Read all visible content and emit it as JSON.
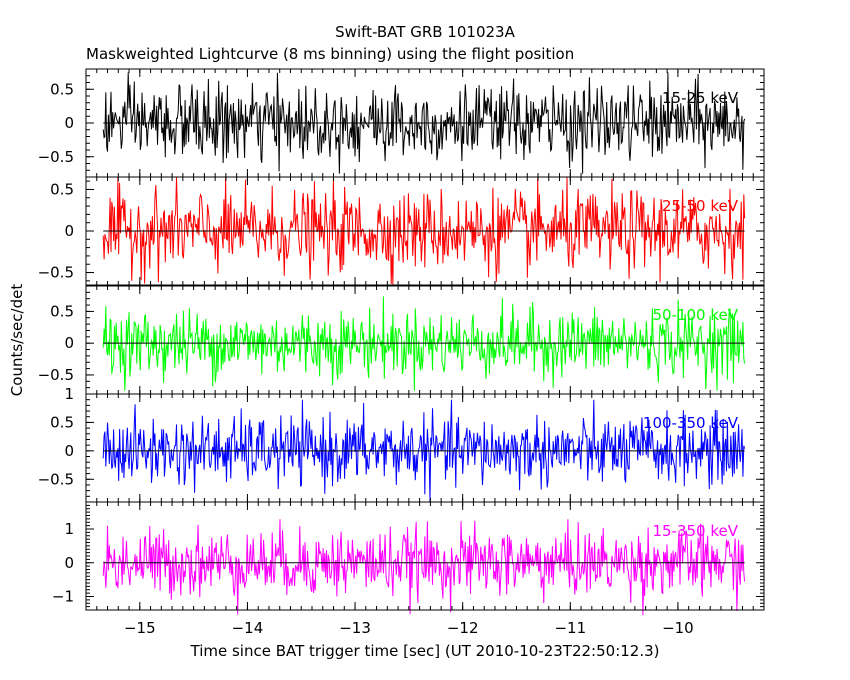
{
  "title": "Swift-BAT GRB 101023A",
  "subtitle": "Maskweighted Lightcurve (8 ms binning) using the flight position",
  "ylabel": "Counts/sec/det",
  "xlabel": "Time since BAT trigger time [sec] (UT 2010-10-23T22:50:12.3)",
  "chart_data": [
    {
      "type": "line",
      "series": [
        {
          "name": "15-25 keV",
          "color": "#000000",
          "amplitude": 0.28,
          "peak": 0.75
        }
      ],
      "x_range": [
        -15.34,
        -9.38
      ],
      "xlim": [
        -15.5,
        -9.2
      ],
      "ylim": [
        -0.8,
        0.8
      ],
      "yticks": [
        0.5,
        0,
        -0.5
      ],
      "ytick_labels": [
        "0.5",
        "0",
        "−0.5"
      ]
    },
    {
      "type": "line",
      "series": [
        {
          "name": "25-50 keV",
          "color": "#ff0000",
          "amplitude": 0.24,
          "peak": 0.65
        }
      ],
      "x_range": [
        -15.34,
        -9.38
      ],
      "xlim": [
        -15.5,
        -9.2
      ],
      "ylim": [
        -0.65,
        0.65
      ],
      "yticks": [
        0.5,
        0,
        -0.5
      ],
      "ytick_labels": [
        "0.5",
        "0",
        "−0.5"
      ]
    },
    {
      "type": "line",
      "series": [
        {
          "name": "50-100 keV",
          "color": "#00ff00",
          "amplitude": 0.26,
          "peak": 0.75
        }
      ],
      "x_range": [
        -15.34,
        -9.38
      ],
      "xlim": [
        -15.5,
        -9.2
      ],
      "ylim": [
        -0.8,
        0.9
      ],
      "yticks": [
        0.5,
        0,
        -0.5
      ],
      "ytick_labels": [
        "0.5",
        "0",
        "−0.5"
      ]
    },
    {
      "type": "line",
      "series": [
        {
          "name": "100-350 keV",
          "color": "#0000ff",
          "amplitude": 0.3,
          "peak": 0.9
        }
      ],
      "x_range": [
        -15.34,
        -9.38
      ],
      "xlim": [
        -15.5,
        -9.2
      ],
      "ylim": [
        -0.9,
        1.0
      ],
      "yticks": [
        1,
        0.5,
        0,
        -0.5
      ],
      "ytick_labels": [
        "1",
        "0.5",
        "0",
        "−0.5"
      ]
    },
    {
      "type": "line",
      "series": [
        {
          "name": "15-350 keV",
          "color": "#ff00ff",
          "amplitude": 0.5,
          "peak": 1.55
        }
      ],
      "x_range": [
        -15.34,
        -9.38
      ],
      "xlim": [
        -15.5,
        -9.2
      ],
      "ylim": [
        -1.4,
        1.8
      ],
      "yticks": [
        1,
        0,
        -1
      ],
      "ytick_labels": [
        "1",
        "0",
        "−1"
      ]
    }
  ],
  "xticks": [
    -15,
    -14,
    -13,
    -12,
    -11,
    -10
  ],
  "xtick_labels": [
    "−15",
    "−14",
    "−13",
    "−12",
    "−11",
    "−10"
  ]
}
